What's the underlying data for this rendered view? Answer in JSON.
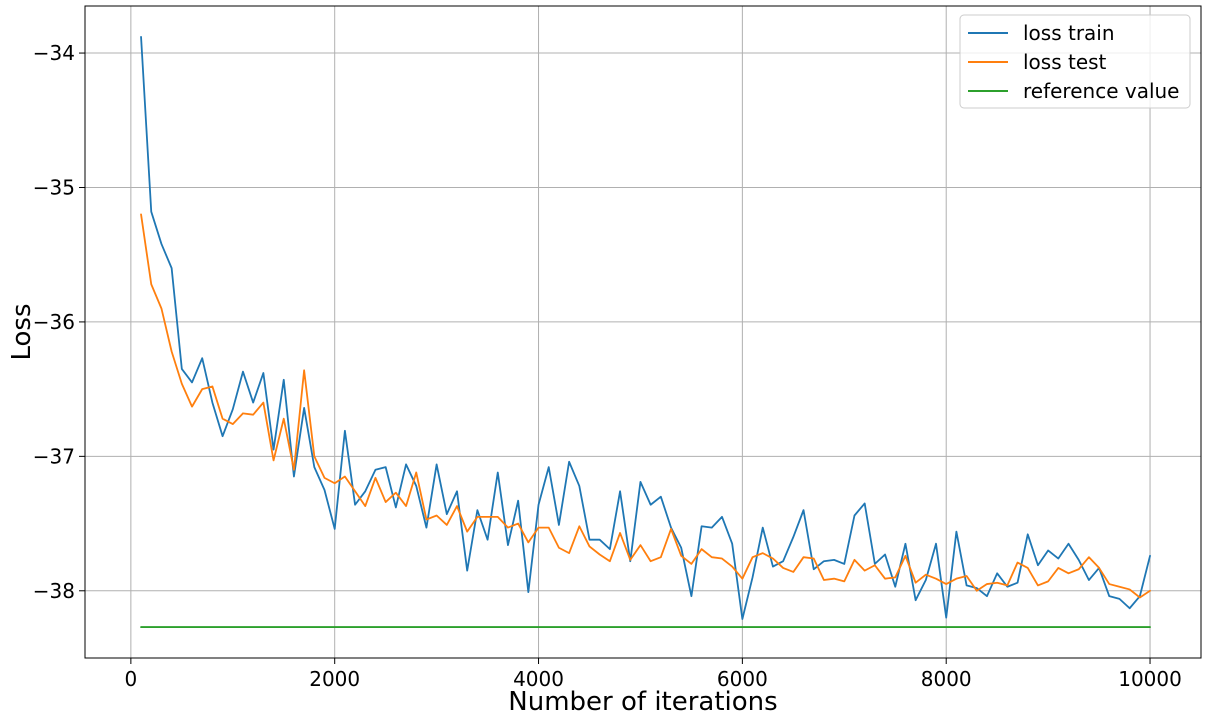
{
  "chart_data": {
    "type": "line",
    "title": "",
    "xlabel": "Number of iterations",
    "ylabel": "Loss",
    "xlim": [
      -450,
      10500
    ],
    "ylim": [
      -38.5,
      -33.65
    ],
    "xticks": [
      0,
      2000,
      4000,
      6000,
      8000,
      10000
    ],
    "yticks": [
      -38,
      -37,
      -36,
      -35,
      -34
    ],
    "grid": true,
    "legend_position": "top-right",
    "x": [
      100,
      200,
      300,
      400,
      500,
      600,
      700,
      800,
      900,
      1000,
      1100,
      1200,
      1300,
      1400,
      1500,
      1600,
      1700,
      1800,
      1900,
      2000,
      2100,
      2200,
      2300,
      2400,
      2500,
      2600,
      2700,
      2800,
      2900,
      3000,
      3100,
      3200,
      3300,
      3400,
      3500,
      3600,
      3700,
      3800,
      3900,
      4000,
      4100,
      4200,
      4300,
      4400,
      4500,
      4600,
      4700,
      4800,
      4900,
      5000,
      5100,
      5200,
      5300,
      5400,
      5500,
      5600,
      5700,
      5800,
      5900,
      6000,
      6100,
      6200,
      6300,
      6400,
      6500,
      6600,
      6700,
      6800,
      6900,
      7000,
      7100,
      7200,
      7300,
      7400,
      7500,
      7600,
      7700,
      7800,
      7900,
      8000,
      8100,
      8200,
      8300,
      8400,
      8500,
      8600,
      8700,
      8800,
      8900,
      9000,
      9100,
      9200,
      9300,
      9400,
      9500,
      9600,
      9700,
      9800,
      9900,
      10000
    ],
    "series": [
      {
        "name": "loss train",
        "color": "#1f77b4",
        "values": [
          -33.88,
          -35.18,
          -35.42,
          -35.6,
          -36.35,
          -36.45,
          -36.27,
          -36.6,
          -36.85,
          -36.65,
          -36.37,
          -36.6,
          -36.38,
          -36.95,
          -36.43,
          -37.15,
          -36.64,
          -37.08,
          -37.25,
          -37.54,
          -36.81,
          -37.36,
          -37.26,
          -37.1,
          -37.08,
          -37.38,
          -37.06,
          -37.22,
          -37.53,
          -37.06,
          -37.43,
          -37.26,
          -37.85,
          -37.4,
          -37.62,
          -37.12,
          -37.66,
          -37.33,
          -38.01,
          -37.36,
          -37.08,
          -37.51,
          -37.04,
          -37.22,
          -37.62,
          -37.62,
          -37.69,
          -37.26,
          -37.78,
          -37.19,
          -37.36,
          -37.3,
          -37.53,
          -37.68,
          -38.04,
          -37.52,
          -37.53,
          -37.45,
          -37.65,
          -38.21,
          -37.9,
          -37.53,
          -37.82,
          -37.78,
          -37.6,
          -37.4,
          -37.84,
          -37.78,
          -37.77,
          -37.8,
          -37.44,
          -37.35,
          -37.8,
          -37.73,
          -37.97,
          -37.65,
          -38.07,
          -37.92,
          -37.65,
          -38.2,
          -37.56,
          -37.96,
          -37.98,
          -38.04,
          -37.87,
          -37.97,
          -37.94,
          -37.58,
          -37.81,
          -37.7,
          -37.76,
          -37.65,
          -37.77,
          -37.92,
          -37.83,
          -38.04,
          -38.06,
          -38.13,
          -38.04,
          -37.74
        ]
      },
      {
        "name": "loss test",
        "color": "#ff7f0e",
        "values": [
          -35.2,
          -35.72,
          -35.9,
          -36.22,
          -36.46,
          -36.63,
          -36.5,
          -36.48,
          -36.72,
          -36.76,
          -36.68,
          -36.69,
          -36.6,
          -37.03,
          -36.72,
          -37.1,
          -36.36,
          -37.0,
          -37.16,
          -37.2,
          -37.15,
          -37.26,
          -37.37,
          -37.16,
          -37.34,
          -37.27,
          -37.37,
          -37.12,
          -37.47,
          -37.44,
          -37.51,
          -37.37,
          -37.56,
          -37.45,
          -37.45,
          -37.45,
          -37.53,
          -37.5,
          -37.64,
          -37.53,
          -37.53,
          -37.68,
          -37.72,
          -37.52,
          -37.67,
          -37.73,
          -37.78,
          -37.57,
          -37.77,
          -37.66,
          -37.78,
          -37.75,
          -37.54,
          -37.74,
          -37.8,
          -37.69,
          -37.75,
          -37.76,
          -37.82,
          -37.91,
          -37.75,
          -37.72,
          -37.76,
          -37.83,
          -37.86,
          -37.75,
          -37.76,
          -37.92,
          -37.91,
          -37.93,
          -37.77,
          -37.85,
          -37.81,
          -37.91,
          -37.9,
          -37.74,
          -37.94,
          -37.88,
          -37.91,
          -37.95,
          -37.91,
          -37.89,
          -38.0,
          -37.95,
          -37.94,
          -37.96,
          -37.79,
          -37.83,
          -37.96,
          -37.93,
          -37.83,
          -37.87,
          -37.84,
          -37.75,
          -37.83,
          -37.95,
          -37.97,
          -37.99,
          -38.05,
          -38.0
        ]
      },
      {
        "name": "reference value",
        "color": "#2ca02c",
        "values": [
          -38.27,
          -38.27,
          -38.27,
          -38.27,
          -38.27,
          -38.27,
          -38.27,
          -38.27,
          -38.27,
          -38.27,
          -38.27,
          -38.27,
          -38.27,
          -38.27,
          -38.27,
          -38.27,
          -38.27,
          -38.27,
          -38.27,
          -38.27,
          -38.27,
          -38.27,
          -38.27,
          -38.27,
          -38.27,
          -38.27,
          -38.27,
          -38.27,
          -38.27,
          -38.27,
          -38.27,
          -38.27,
          -38.27,
          -38.27,
          -38.27,
          -38.27,
          -38.27,
          -38.27,
          -38.27,
          -38.27,
          -38.27,
          -38.27,
          -38.27,
          -38.27,
          -38.27,
          -38.27,
          -38.27,
          -38.27,
          -38.27,
          -38.27,
          -38.27,
          -38.27,
          -38.27,
          -38.27,
          -38.27,
          -38.27,
          -38.27,
          -38.27,
          -38.27,
          -38.27,
          -38.27,
          -38.27,
          -38.27,
          -38.27,
          -38.27,
          -38.27,
          -38.27,
          -38.27,
          -38.27,
          -38.27,
          -38.27,
          -38.27,
          -38.27,
          -38.27,
          -38.27,
          -38.27,
          -38.27,
          -38.27,
          -38.27,
          -38.27,
          -38.27,
          -38.27,
          -38.27,
          -38.27,
          -38.27,
          -38.27,
          -38.27,
          -38.27,
          -38.27,
          -38.27,
          -38.27,
          -38.27,
          -38.27,
          -38.27,
          -38.27,
          -38.27,
          -38.27,
          -38.27,
          -38.27,
          -38.27
        ]
      }
    ]
  }
}
